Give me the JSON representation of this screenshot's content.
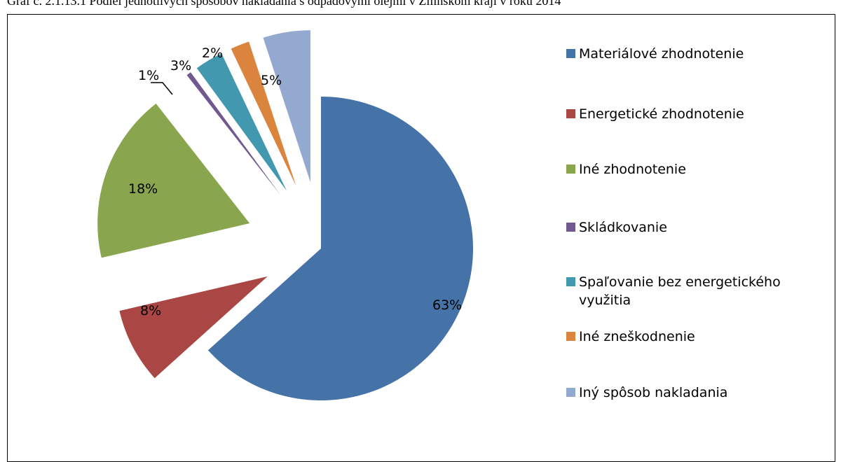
{
  "caption": "Graf č. 2.1.13.1 Podiel jednotlivých spôsobov nakladania s odpadovými olejmi v Žilinskom kraji v roku 2014",
  "chart_data": {
    "type": "pie",
    "title": "",
    "slices": [
      {
        "label": "Materiálové zhodnotenie",
        "value": 63,
        "display": "63%",
        "color": "#4572A7"
      },
      {
        "label": "Energetické zhodnotenie",
        "value": 8,
        "display": "8%",
        "color": "#AA4643"
      },
      {
        "label": "Iné zhodnotenie",
        "value": 18,
        "display": "18%",
        "color": "#89A54E"
      },
      {
        "label": "Skládkovanie",
        "value": 0.5,
        "display": "1%",
        "color": "#71588F"
      },
      {
        "label": "Spaľovanie bez energetického využitia",
        "value": 3,
        "display": "3%",
        "color": "#4198AF"
      },
      {
        "label": "Iné zneškodnenie",
        "value": 2,
        "display": "2%",
        "color": "#DB843D"
      },
      {
        "label": "Iný spôsob nakladania",
        "value": 5,
        "display": "5%",
        "color": "#93A9CF"
      }
    ],
    "legend_position": "right"
  }
}
